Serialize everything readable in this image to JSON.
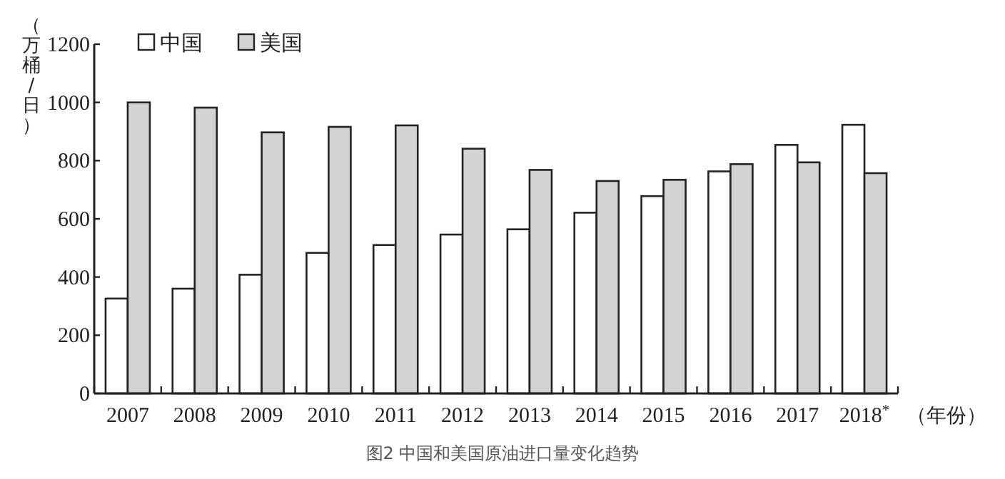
{
  "chart_data": {
    "type": "bar",
    "title": "图2 中国和美国原油进口量变化趋势",
    "xlabel": "（年份）",
    "ylabel": "（万桶/日）",
    "categories": [
      "2007",
      "2008",
      "2009",
      "2010",
      "2011",
      "2012",
      "2013",
      "2014",
      "2015",
      "2016",
      "2017",
      "2018$^{*}$"
    ],
    "series": [
      {
        "name": "中国",
        "color": "#ffffff",
        "values": [
          326,
          360,
          408,
          483,
          510,
          546,
          564,
          621,
          678,
          763,
          854,
          923
        ]
      },
      {
        "name": "美国",
        "color": "#d3d3d3",
        "values": [
          1000,
          982,
          897,
          916,
          921,
          841,
          768,
          730,
          734,
          788,
          794,
          757
        ]
      }
    ],
    "ylim": [
      0,
      1200
    ],
    "yticks": [
      0,
      200,
      400,
      600,
      800,
      1000,
      1200
    ],
    "legend": "top left"
  }
}
